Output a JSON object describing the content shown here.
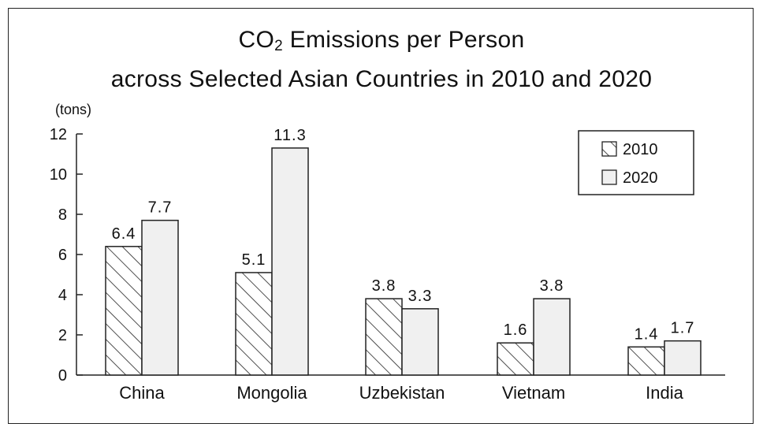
{
  "chart_data": {
    "type": "bar",
    "title_main": "CO",
    "title_sub": "2",
    "title_rest": " Emissions per Person",
    "subtitle": "across Selected Asian Countries in 2010 and 2020",
    "ylabel": "(tons)",
    "ylim": [
      0,
      12
    ],
    "yticks": [
      "0",
      "2",
      "4",
      "6",
      "8",
      "10",
      "12"
    ],
    "categories": [
      "China",
      "Mongolia",
      "Uzbekistan",
      "Vietnam",
      "India"
    ],
    "series": [
      {
        "name": "2010",
        "values": [
          6.4,
          5.1,
          3.8,
          1.6,
          1.4
        ],
        "labels": [
          "6.4",
          "5.1",
          "3.8",
          "1.6",
          "1.4"
        ],
        "pattern": "hatched"
      },
      {
        "name": "2020",
        "values": [
          7.7,
          11.3,
          3.3,
          3.8,
          1.7
        ],
        "labels": [
          "7.7",
          "11.3",
          "3.3",
          "3.8",
          "1.7"
        ],
        "pattern": "light-gray"
      }
    ],
    "legend": "top-right",
    "grid": false
  }
}
